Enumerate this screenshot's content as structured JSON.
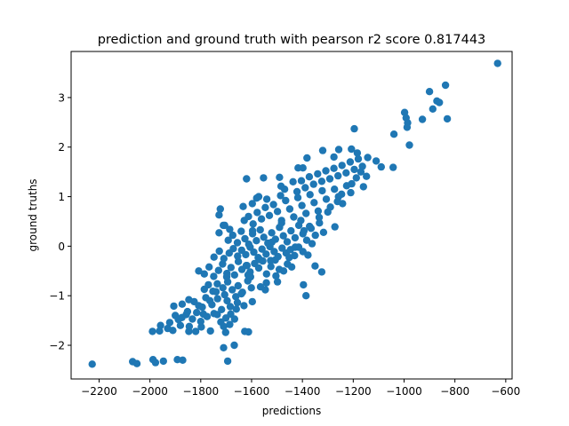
{
  "chart_data": {
    "type": "scatter",
    "title": "prediction and ground truth with pearson r2 score 0.817443",
    "xlabel": "predictions",
    "ylabel": "ground truths",
    "xlim": [
      -2310,
      -575
    ],
    "ylim": [
      -2.68,
      3.93
    ],
    "xticks": [
      -2200,
      -2000,
      -1800,
      -1600,
      -1400,
      -1200,
      -1000,
      -800,
      -600
    ],
    "xtick_labels": [
      "−2200",
      "−2000",
      "−1800",
      "−1600",
      "−1400",
      "−1200",
      "−1000",
      "−800",
      "−600"
    ],
    "yticks": [
      -2,
      -1,
      0,
      1,
      2,
      3
    ],
    "ytick_labels": [
      "−2",
      "−1",
      "0",
      "1",
      "2",
      "3"
    ],
    "grid": false,
    "marker_color": "#1f77b4",
    "series": [
      {
        "points": [
          [
            -2227,
            -2.38
          ],
          [
            -2068,
            -2.33
          ],
          [
            -2051,
            -2.37
          ],
          [
            -1988,
            -2.29
          ],
          [
            -1978,
            -2.35
          ],
          [
            -1947,
            -2.32
          ],
          [
            -1892,
            -2.29
          ],
          [
            -1871,
            -2.3
          ],
          [
            -1694,
            -2.32
          ],
          [
            -1710,
            -2.05
          ],
          [
            -1668,
            -2.0
          ],
          [
            -1990,
            -1.72
          ],
          [
            -1962,
            -1.71
          ],
          [
            -1930,
            -1.66
          ],
          [
            -1910,
            -1.7
          ],
          [
            -1880,
            -1.6
          ],
          [
            -1847,
            -1.72
          ],
          [
            -1820,
            -1.72
          ],
          [
            -1798,
            -1.63
          ],
          [
            -1762,
            -1.71
          ],
          [
            -1702,
            -1.74
          ],
          [
            -1627,
            -1.72
          ],
          [
            -1612,
            -1.73
          ],
          [
            -1900,
            -1.4
          ],
          [
            -1874,
            -1.44
          ],
          [
            -1857,
            -1.38
          ],
          [
            -1833,
            -1.47
          ],
          [
            -1790,
            -1.37
          ],
          [
            -1748,
            -1.36
          ],
          [
            -1721,
            -1.53
          ],
          [
            -1701,
            -1.45
          ],
          [
            -1682,
            -1.37
          ],
          [
            -1667,
            -1.47
          ],
          [
            -1906,
            -1.21
          ],
          [
            -1873,
            -1.17
          ],
          [
            -1847,
            -1.08
          ],
          [
            -1826,
            -1.12
          ],
          [
            -1808,
            -1.2
          ],
          [
            -1780,
            -1.04
          ],
          [
            -1756,
            -1.18
          ],
          [
            -1734,
            -1.06
          ],
          [
            -1718,
            -1.28
          ],
          [
            -1696,
            -1.1
          ],
          [
            -1656,
            -1.14
          ],
          [
            -1630,
            -1.2
          ],
          [
            -1597,
            -1.12
          ],
          [
            -1786,
            -0.87
          ],
          [
            -1770,
            -0.78
          ],
          [
            -1752,
            -0.91
          ],
          [
            -1735,
            -0.76
          ],
          [
            -1713,
            -0.84
          ],
          [
            -1694,
            -0.72
          ],
          [
            -1676,
            -0.88
          ],
          [
            -1653,
            -0.8
          ],
          [
            -1636,
            -0.93
          ],
          [
            -1615,
            -0.7
          ],
          [
            -1601,
            -0.84
          ],
          [
            -1565,
            -0.82
          ],
          [
            -1542,
            -0.74
          ],
          [
            -1498,
            -0.72
          ],
          [
            -1386,
            -1.0
          ],
          [
            -1396,
            -0.78
          ],
          [
            -1808,
            -0.5
          ],
          [
            -1786,
            -0.56
          ],
          [
            -1767,
            -0.42
          ],
          [
            -1749,
            -0.61
          ],
          [
            -1730,
            -0.49
          ],
          [
            -1714,
            -0.36
          ],
          [
            -1697,
            -0.55
          ],
          [
            -1681,
            -0.43
          ],
          [
            -1667,
            -0.58
          ],
          [
            -1652,
            -0.31
          ],
          [
            -1638,
            -0.47
          ],
          [
            -1621,
            -0.39
          ],
          [
            -1606,
            -0.52
          ],
          [
            -1588,
            -0.35
          ],
          [
            -1572,
            -0.44
          ],
          [
            -1556,
            -0.3
          ],
          [
            -1541,
            -0.56
          ],
          [
            -1524,
            -0.41
          ],
          [
            -1507,
            -0.28
          ],
          [
            -1491,
            -0.47
          ],
          [
            -1459,
            -0.36
          ],
          [
            -1442,
            -0.42
          ],
          [
            -1350,
            -0.4
          ],
          [
            -1324,
            -0.52
          ],
          [
            -1748,
            -0.22
          ],
          [
            -1727,
            -0.1
          ],
          [
            -1709,
            -0.25
          ],
          [
            -1688,
            -0.14
          ],
          [
            -1672,
            -0.05
          ],
          [
            -1655,
            -0.2
          ],
          [
            -1639,
            -0.08
          ],
          [
            -1623,
            -0.17
          ],
          [
            -1606,
            -0.02
          ],
          [
            -1591,
            -0.12
          ],
          [
            -1574,
            -0.23
          ],
          [
            -1559,
            -0.06
          ],
          [
            -1543,
            -0.16
          ],
          [
            -1528,
            -0.01
          ],
          [
            -1511,
            -0.11
          ],
          [
            -1496,
            -0.21
          ],
          [
            -1480,
            -0.04
          ],
          [
            -1464,
            -0.14
          ],
          [
            -1447,
            -0.07
          ],
          [
            -1431,
            -0.19
          ],
          [
            -1415,
            -0.02
          ],
          [
            -1398,
            -0.11
          ],
          [
            -1378,
            -0.18
          ],
          [
            -1362,
            0.05
          ],
          [
            -1692,
            0.12
          ],
          [
            -1674,
            0.22
          ],
          [
            -1656,
            0.07
          ],
          [
            -1641,
            0.3
          ],
          [
            -1626,
            0.15
          ],
          [
            -1611,
            0.04
          ],
          [
            -1596,
            0.25
          ],
          [
            -1581,
            0.11
          ],
          [
            -1566,
            0.33
          ],
          [
            -1552,
            0.18
          ],
          [
            -1536,
            0.06
          ],
          [
            -1521,
            0.27
          ],
          [
            -1506,
            0.14
          ],
          [
            -1490,
            0.38
          ],
          [
            -1475,
            0.21
          ],
          [
            -1460,
            0.09
          ],
          [
            -1445,
            0.31
          ],
          [
            -1429,
            0.17
          ],
          [
            -1414,
            0.42
          ],
          [
            -1398,
            0.25
          ],
          [
            -1383,
            0.12
          ],
          [
            -1366,
            0.36
          ],
          [
            -1349,
            0.22
          ],
          [
            -1333,
            0.47
          ],
          [
            -1317,
            0.28
          ],
          [
            -1728,
            0.27
          ],
          [
            -1706,
            0.42
          ],
          [
            -1686,
            0.34
          ],
          [
            -1629,
            0.52
          ],
          [
            -1612,
            0.6
          ],
          [
            -1594,
            0.45
          ],
          [
            -1578,
            0.68
          ],
          [
            -1561,
            0.55
          ],
          [
            -1546,
            0.78
          ],
          [
            -1530,
            0.62
          ],
          [
            -1514,
            0.84
          ],
          [
            -1498,
            0.7
          ],
          [
            -1482,
            0.52
          ],
          [
            -1466,
            0.92
          ],
          [
            -1450,
            0.75
          ],
          [
            -1434,
            0.59
          ],
          [
            -1418,
            0.98
          ],
          [
            -1402,
            0.82
          ],
          [
            -1386,
            0.66
          ],
          [
            -1370,
            1.04
          ],
          [
            -1354,
            0.88
          ],
          [
            -1338,
            0.71
          ],
          [
            -1322,
            1.12
          ],
          [
            -1306,
            0.95
          ],
          [
            -1290,
            0.79
          ],
          [
            -1274,
            1.15
          ],
          [
            -1258,
            1.0
          ],
          [
            -1242,
            0.86
          ],
          [
            -1226,
            1.22
          ],
          [
            -1210,
            1.08
          ],
          [
            -1728,
            0.63
          ],
          [
            -1723,
            0.75
          ],
          [
            -1711,
            0.42
          ],
          [
            -1596,
            0.31
          ],
          [
            -1580,
            0.97
          ],
          [
            -1540,
            0.95
          ],
          [
            -1486,
            1.02
          ],
          [
            -1470,
            1.15
          ],
          [
            -1437,
            1.3
          ],
          [
            -1421,
            1.1
          ],
          [
            -1404,
            1.32
          ],
          [
            -1389,
            1.18
          ],
          [
            -1373,
            1.4
          ],
          [
            -1356,
            1.25
          ],
          [
            -1340,
            1.46
          ],
          [
            -1324,
            1.31
          ],
          [
            -1308,
            1.52
          ],
          [
            -1292,
            1.36
          ],
          [
            -1276,
            1.57
          ],
          [
            -1260,
            1.42
          ],
          [
            -1244,
            1.63
          ],
          [
            -1228,
            1.48
          ],
          [
            -1212,
            1.7
          ],
          [
            -1196,
            1.55
          ],
          [
            -1180,
            1.76
          ],
          [
            -1164,
            1.61
          ],
          [
            -1148,
            1.41
          ],
          [
            -1160,
            1.2
          ],
          [
            -1143,
            1.79
          ],
          [
            -1110,
            1.72
          ],
          [
            -1184,
            1.88
          ],
          [
            -1207,
            1.96
          ],
          [
            -1257,
            1.95
          ],
          [
            -1276,
            1.8
          ],
          [
            -1320,
            1.93
          ],
          [
            -1382,
            1.78
          ],
          [
            -1417,
            1.58
          ],
          [
            -1398,
            1.58
          ],
          [
            -1490,
            1.39
          ],
          [
            -1553,
            1.38
          ],
          [
            -1620,
            1.36
          ],
          [
            -1484,
            1.21
          ],
          [
            -1572,
            1.0
          ],
          [
            -1597,
            0.86
          ],
          [
            -1633,
            0.8
          ],
          [
            -1196,
            2.37
          ],
          [
            -1090,
            1.6
          ],
          [
            -1043,
            1.59
          ],
          [
            -1040,
            2.26
          ],
          [
            -998,
            2.7
          ],
          [
            -992,
            2.59
          ],
          [
            -988,
            2.4
          ],
          [
            -986,
            2.49
          ],
          [
            -979,
            2.04
          ],
          [
            -928,
            2.56
          ],
          [
            -900,
            3.12
          ],
          [
            -871,
            2.93
          ],
          [
            -861,
            2.9
          ],
          [
            -830,
            2.57
          ],
          [
            -837,
            3.25
          ],
          [
            -887,
            2.77
          ],
          [
            -632,
            3.69
          ],
          [
            -1272,
            0.39
          ],
          [
            -1394,
            0.31
          ],
          [
            -1482,
            0.47
          ],
          [
            -1520,
            0.08
          ],
          [
            -1428,
            -0.02
          ],
          [
            -1406,
            0.52
          ],
          [
            -1372,
            0.4
          ],
          [
            -1334,
            0.58
          ],
          [
            -1300,
            0.69
          ],
          [
            -1262,
            0.9
          ],
          [
            -1246,
            1.05
          ],
          [
            -1206,
            1.26
          ],
          [
            -1188,
            1.38
          ],
          [
            -1170,
            1.5
          ],
          [
            -1698,
            -0.62
          ],
          [
            -1618,
            -0.39
          ],
          [
            -1604,
            -0.62
          ],
          [
            -1568,
            -0.27
          ],
          [
            -1546,
            -0.88
          ],
          [
            -1525,
            -0.29
          ],
          [
            -1504,
            -0.6
          ],
          [
            -1474,
            -0.5
          ],
          [
            -1452,
            -0.23
          ],
          [
            -1706,
            -0.98
          ],
          [
            -1684,
            -1.22
          ],
          [
            -1662,
            -1.02
          ],
          [
            -1640,
            -0.96
          ],
          [
            -1614,
            -0.58
          ],
          [
            -1764,
            -1.1
          ],
          [
            -1740,
            -0.92
          ],
          [
            -1794,
            -1.23
          ],
          [
            -1816,
            -1.34
          ],
          [
            -1852,
            -1.32
          ],
          [
            -1888,
            -1.48
          ],
          [
            -1922,
            -1.54
          ],
          [
            -1958,
            -1.6
          ],
          [
            -1845,
            -1.62
          ],
          [
            -1800,
            -1.52
          ],
          [
            -1775,
            -1.42
          ],
          [
            -1735,
            -1.38
          ],
          [
            -1710,
            -1.62
          ],
          [
            -1686,
            -1.58
          ],
          [
            -1660,
            -1.27
          ]
        ]
      }
    ]
  }
}
